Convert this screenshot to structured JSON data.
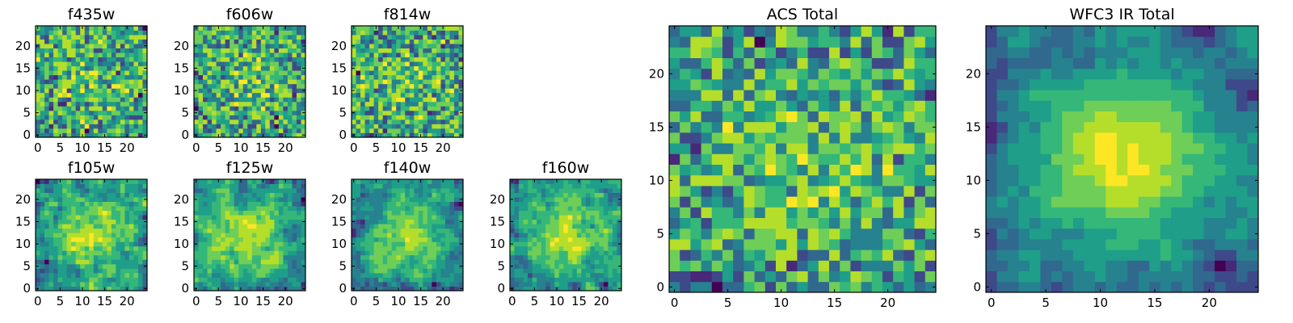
{
  "chart_data": [
    {
      "type": "heatmap",
      "title": "f435w",
      "grid": 25,
      "seed": 11,
      "smooth": 0,
      "center_bias": 0.15,
      "xticks": [
        0,
        5,
        10,
        15,
        20
      ],
      "yticks": [
        0,
        5,
        10,
        15,
        20
      ],
      "xlim": [
        -0.5,
        24.5
      ],
      "ylim": [
        -0.5,
        24.5
      ],
      "colormap": "viridis",
      "value_range": [
        0,
        1
      ]
    },
    {
      "type": "heatmap",
      "title": "f606w",
      "grid": 25,
      "seed": 23,
      "smooth": 0,
      "center_bias": 0.2,
      "xticks": [
        0,
        5,
        10,
        15,
        20
      ],
      "yticks": [
        0,
        5,
        10,
        15,
        20
      ],
      "xlim": [
        -0.5,
        24.5
      ],
      "ylim": [
        -0.5,
        24.5
      ],
      "colormap": "viridis",
      "value_range": [
        0,
        1
      ]
    },
    {
      "type": "heatmap",
      "title": "f814w",
      "grid": 25,
      "seed": 37,
      "smooth": 0,
      "center_bias": 0.15,
      "xticks": [
        0,
        5,
        10,
        15,
        20
      ],
      "yticks": [
        0,
        5,
        10,
        15,
        20
      ],
      "xlim": [
        -0.5,
        24.5
      ],
      "ylim": [
        -0.5,
        24.5
      ],
      "colormap": "viridis",
      "value_range": [
        0,
        1
      ]
    },
    {
      "type": "heatmap",
      "title": "f105w",
      "grid": 25,
      "seed": 41,
      "smooth": 1,
      "center_bias": 0.45,
      "xticks": [
        0,
        5,
        10,
        15,
        20
      ],
      "yticks": [
        0,
        5,
        10,
        15,
        20
      ],
      "xlim": [
        -0.5,
        24.5
      ],
      "ylim": [
        -0.5,
        24.5
      ],
      "colormap": "viridis",
      "value_range": [
        0,
        1
      ]
    },
    {
      "type": "heatmap",
      "title": "f125w",
      "grid": 25,
      "seed": 53,
      "smooth": 1,
      "center_bias": 0.4,
      "xticks": [
        0,
        5,
        10,
        15,
        20
      ],
      "yticks": [
        0,
        5,
        10,
        15,
        20
      ],
      "xlim": [
        -0.5,
        24.5
      ],
      "ylim": [
        -0.5,
        24.5
      ],
      "colormap": "viridis",
      "value_range": [
        0,
        1
      ]
    },
    {
      "type": "heatmap",
      "title": "f140w",
      "grid": 25,
      "seed": 67,
      "smooth": 1,
      "center_bias": 0.5,
      "xticks": [
        0,
        5,
        10,
        15,
        20
      ],
      "yticks": [
        0,
        5,
        10,
        15,
        20
      ],
      "xlim": [
        -0.5,
        24.5
      ],
      "ylim": [
        -0.5,
        24.5
      ],
      "colormap": "viridis",
      "value_range": [
        0,
        1
      ]
    },
    {
      "type": "heatmap",
      "title": "f160w",
      "grid": 25,
      "seed": 79,
      "smooth": 1,
      "center_bias": 0.5,
      "xticks": [
        0,
        5,
        10,
        15,
        20
      ],
      "yticks": [
        0,
        5,
        10,
        15,
        20
      ],
      "xlim": [
        -0.5,
        24.5
      ],
      "ylim": [
        -0.5,
        24.5
      ],
      "colormap": "viridis",
      "value_range": [
        0,
        1
      ]
    },
    {
      "type": "heatmap",
      "title": "ACS Total",
      "grid": 25,
      "seed": 97,
      "smooth": 0,
      "center_bias": 0.25,
      "xticks": [
        0,
        5,
        10,
        15,
        20
      ],
      "yticks": [
        0,
        5,
        10,
        15,
        20
      ],
      "xlim": [
        -0.5,
        24.5
      ],
      "ylim": [
        -0.5,
        24.5
      ],
      "colormap": "viridis",
      "value_range": [
        0,
        1
      ]
    },
    {
      "type": "heatmap",
      "title": "WFC3 IR Total",
      "grid": 25,
      "seed": 113,
      "smooth": 2,
      "center_bias": 0.8,
      "xticks": [
        0,
        5,
        10,
        15,
        20
      ],
      "yticks": [
        0,
        5,
        10,
        15,
        20
      ],
      "xlim": [
        -0.5,
        24.5
      ],
      "ylim": [
        -0.5,
        24.5
      ],
      "colormap": "viridis",
      "value_range": [
        0,
        1
      ]
    }
  ],
  "colors": {
    "viridis": [
      "#440154",
      "#482878",
      "#3e4989",
      "#31688e",
      "#26828e",
      "#1f9e89",
      "#35b779",
      "#6ece58",
      "#b5de2b",
      "#fde725"
    ]
  }
}
